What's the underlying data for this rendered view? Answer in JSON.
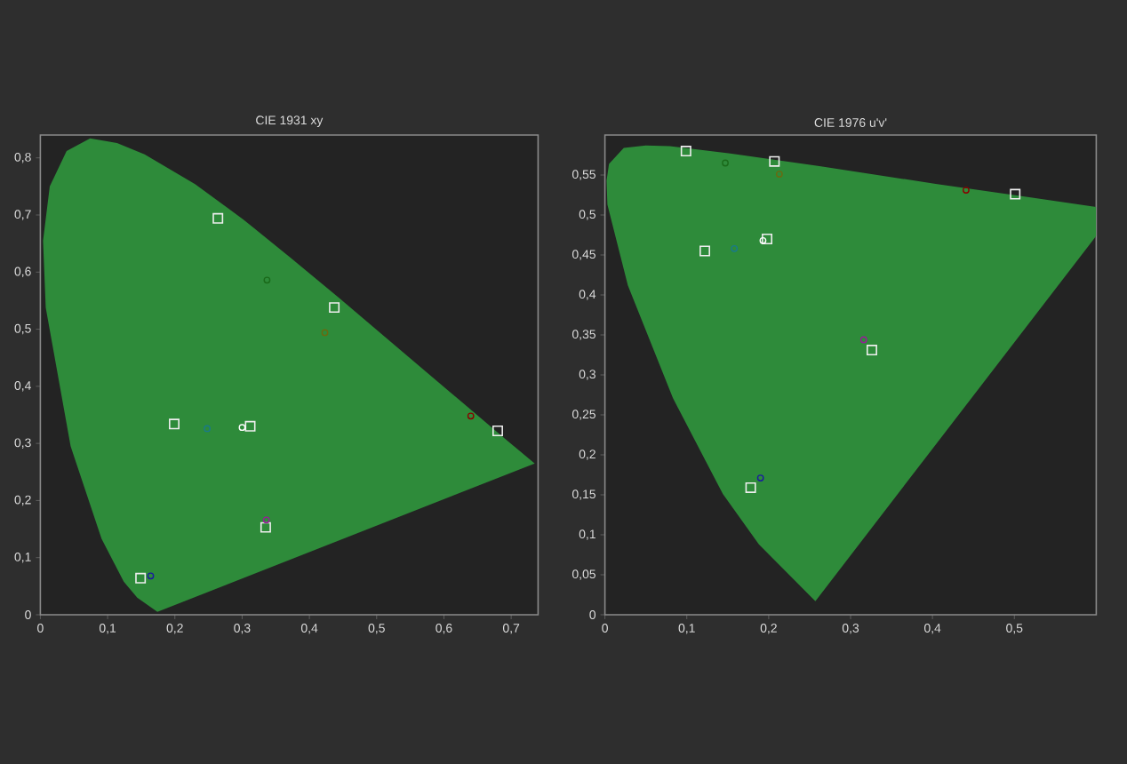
{
  "chart_data": [
    {
      "type": "scatter",
      "title": "CIE 1931 xy",
      "xlim": [
        0,
        0.74
      ],
      "ylim": [
        0,
        0.84
      ],
      "xticks": [
        0,
        {
          "value": 0.1,
          "label": "0,1"
        },
        {
          "value": 0.2,
          "label": "0,2"
        },
        {
          "value": 0.3,
          "label": "0,3"
        },
        {
          "value": 0.4,
          "label": "0,4"
        },
        {
          "value": 0.5,
          "label": "0,5"
        },
        {
          "value": 0.6,
          "label": "0,6"
        },
        {
          "value": 0.7,
          "label": "0,7"
        }
      ],
      "yticks": [
        0,
        {
          "value": 0.1,
          "label": "0,1"
        },
        {
          "value": 0.2,
          "label": "0,2"
        },
        {
          "value": 0.3,
          "label": "0,3"
        },
        {
          "value": 0.4,
          "label": "0,4"
        },
        {
          "value": 0.5,
          "label": "0,5"
        },
        {
          "value": 0.6,
          "label": "0,6"
        },
        {
          "value": 0.7,
          "label": "0,7"
        },
        {
          "value": 0.8,
          "label": "0,8"
        }
      ],
      "series": [
        {
          "type": "area",
          "color": "#2e8b3a",
          "x": [
            0.174,
            0.144,
            0.124,
            0.091,
            0.045,
            0.008,
            0.004,
            0.014,
            0.039,
            0.074,
            0.114,
            0.155,
            0.23,
            0.302,
            0.373,
            0.444,
            0.512,
            0.575,
            0.627,
            0.691,
            0.735
          ],
          "values": [
            0.005,
            0.03,
            0.058,
            0.133,
            0.295,
            0.538,
            0.655,
            0.75,
            0.812,
            0.834,
            0.826,
            0.806,
            0.754,
            0.692,
            0.624,
            0.555,
            0.487,
            0.424,
            0.372,
            0.308,
            0.265
          ]
        },
        {
          "marker": "square",
          "color": "#eeeeee",
          "x": [
            0.68,
            0.264,
            0.149,
            0.199,
            0.335,
            0.437,
            0.312
          ],
          "values": [
            0.322,
            0.694,
            0.064,
            0.334,
            0.153,
            0.538,
            0.33
          ]
        },
        {
          "marker": "circle",
          "colors": [
            "#8a0000",
            "#1a6a1a",
            "#1a1aa0",
            "#1a7a8a",
            "#9a1a9a",
            "#6a6a10",
            "#ffffff"
          ],
          "x": [
            0.64,
            0.337,
            0.164,
            0.248,
            0.336,
            0.423,
            0.3
          ],
          "values": [
            0.348,
            0.586,
            0.068,
            0.326,
            0.166,
            0.494,
            0.328
          ]
        }
      ]
    },
    {
      "type": "scatter",
      "title": "CIE 1976 u'v'",
      "xlim": [
        0,
        0.6
      ],
      "ylim": [
        0,
        0.6
      ],
      "xticks": [
        0,
        {
          "value": 0.1,
          "label": "0,1"
        },
        {
          "value": 0.2,
          "label": "0,2"
        },
        {
          "value": 0.3,
          "label": "0,3"
        },
        {
          "value": 0.4,
          "label": "0,4"
        },
        {
          "value": 0.5,
          "label": "0,5"
        }
      ],
      "yticks": [
        0,
        {
          "value": 0.05,
          "label": "0,05"
        },
        {
          "value": 0.1,
          "label": "0,1"
        },
        {
          "value": 0.15,
          "label": "0,15"
        },
        {
          "value": 0.2,
          "label": "0,2"
        },
        {
          "value": 0.25,
          "label": "0,25"
        },
        {
          "value": 0.3,
          "label": "0,3"
        },
        {
          "value": 0.35,
          "label": "0,35"
        },
        {
          "value": 0.4,
          "label": "0,4"
        },
        {
          "value": 0.45,
          "label": "0,45"
        },
        {
          "value": 0.5,
          "label": "0,5"
        },
        {
          "value": 0.55,
          "label": "0,55"
        }
      ],
      "series": [
        {
          "type": "area",
          "color": "#2e8b3a",
          "x": [
            0.257,
            0.188,
            0.144,
            0.083,
            0.028,
            0.003,
            0.002,
            0.005,
            0.023,
            0.05,
            0.079,
            0.153,
            0.262,
            0.404,
            0.52,
            0.6,
            0.6
          ],
          "values": [
            0.017,
            0.088,
            0.151,
            0.271,
            0.412,
            0.513,
            0.543,
            0.564,
            0.584,
            0.587,
            0.586,
            0.577,
            0.561,
            0.539,
            0.522,
            0.51,
            0.474
          ]
        },
        {
          "marker": "square",
          "color": "#eeeeee",
          "x": [
            0.501,
            0.099,
            0.178,
            0.122,
            0.326,
            0.207,
            0.198
          ],
          "values": [
            0.526,
            0.58,
            0.159,
            0.455,
            0.331,
            0.567,
            0.47
          ]
        },
        {
          "marker": "circle",
          "colors": [
            "#8a0000",
            "#1a6a1a",
            "#1a1aa0",
            "#1a7a8a",
            "#9a1a9a",
            "#6a6a10",
            "#ffffff"
          ],
          "x": [
            0.441,
            0.147,
            0.19,
            0.158,
            0.316,
            0.213,
            0.193
          ],
          "values": [
            0.531,
            0.565,
            0.171,
            0.458,
            0.344,
            0.551,
            0.468
          ]
        }
      ]
    }
  ]
}
